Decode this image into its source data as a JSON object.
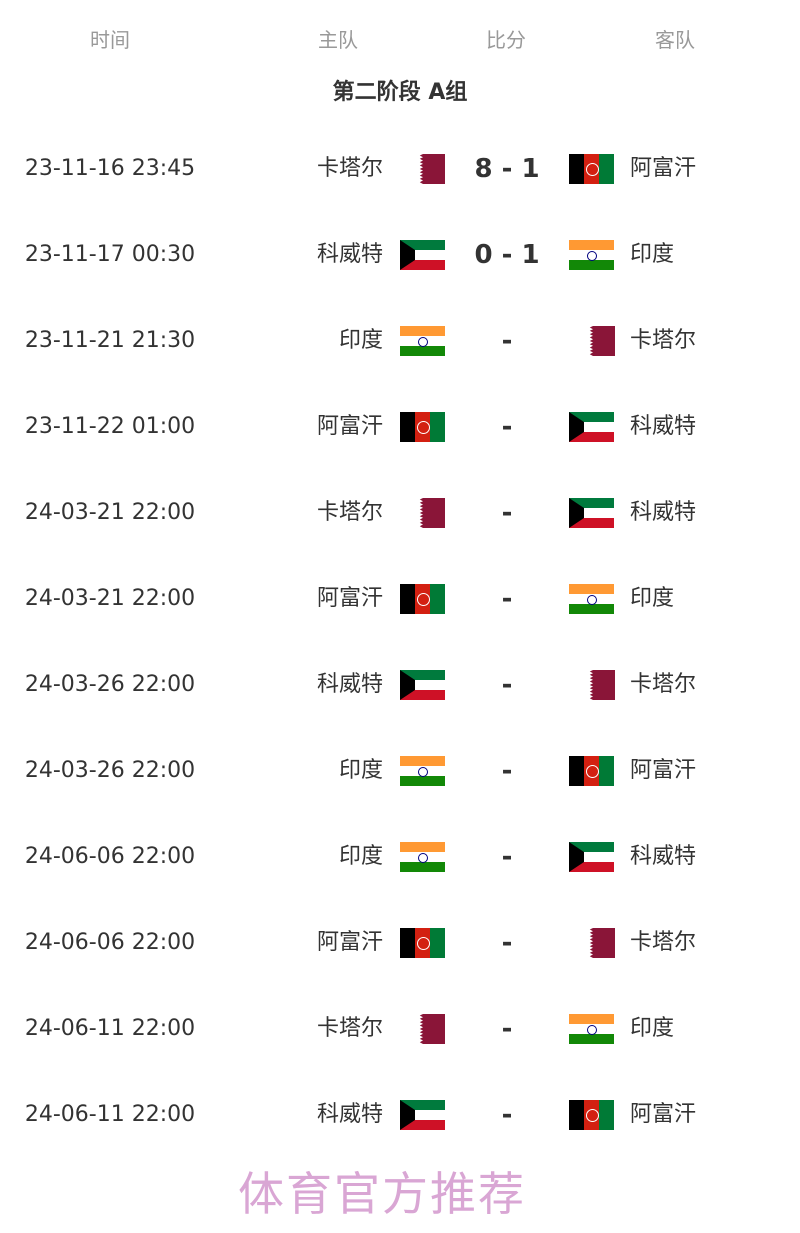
{
  "headers": {
    "time": "时间",
    "home": "主队",
    "score": "比分",
    "away": "客队"
  },
  "title": "第二阶段 A组",
  "flag_colors": {
    "qatar": "#8a1538",
    "afghanistan": "#d32011",
    "kuwait": "#007a3d",
    "india": "#ff9933"
  },
  "matches": [
    {
      "time": "23-11-16 23:45",
      "home": "卡塔尔",
      "home_flag": "qa",
      "score": "8 - 1",
      "away": "阿富汗",
      "away_flag": "af-f"
    },
    {
      "time": "23-11-17 00:30",
      "home": "科威特",
      "home_flag": "kw",
      "score": "0 - 1",
      "away": "印度",
      "away_flag": "in"
    },
    {
      "time": "23-11-21 21:30",
      "home": "印度",
      "home_flag": "in",
      "score": "-",
      "away": "卡塔尔",
      "away_flag": "qa"
    },
    {
      "time": "23-11-22 01:00",
      "home": "阿富汗",
      "home_flag": "af-f",
      "score": "-",
      "away": "科威特",
      "away_flag": "kw"
    },
    {
      "time": "24-03-21 22:00",
      "home": "卡塔尔",
      "home_flag": "qa",
      "score": "-",
      "away": "科威特",
      "away_flag": "kw"
    },
    {
      "time": "24-03-21 22:00",
      "home": "阿富汗",
      "home_flag": "af-f",
      "score": "-",
      "away": "印度",
      "away_flag": "in"
    },
    {
      "time": "24-03-26 22:00",
      "home": "科威特",
      "home_flag": "kw",
      "score": "-",
      "away": "卡塔尔",
      "away_flag": "qa"
    },
    {
      "time": "24-03-26 22:00",
      "home": "印度",
      "home_flag": "in",
      "score": "-",
      "away": "阿富汗",
      "away_flag": "af-f"
    },
    {
      "time": "24-06-06 22:00",
      "home": "印度",
      "home_flag": "in",
      "score": "-",
      "away": "科威特",
      "away_flag": "kw"
    },
    {
      "time": "24-06-06 22:00",
      "home": "阿富汗",
      "home_flag": "af-f",
      "score": "-",
      "away": "卡塔尔",
      "away_flag": "qa"
    },
    {
      "time": "24-06-11 22:00",
      "home": "卡塔尔",
      "home_flag": "qa",
      "score": "-",
      "away": "印度",
      "away_flag": "in"
    },
    {
      "time": "24-06-11 22:00",
      "home": "科威特",
      "home_flag": "kw",
      "score": "-",
      "away": "阿富汗",
      "away_flag": "af-f"
    }
  ],
  "watermark": "体育官方推荐"
}
